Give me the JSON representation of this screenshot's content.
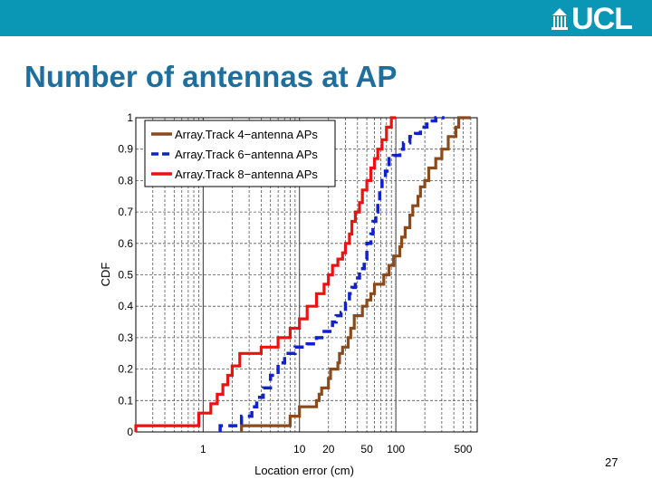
{
  "header": {
    "logo_text": "UCL",
    "bar_color": "#0a97b6"
  },
  "slide": {
    "title": "Number of antennas at AP",
    "page_number": "27"
  },
  "chart_data": {
    "type": "line",
    "xlabel": "Location error (cm)",
    "ylabel": "CDF",
    "xscale": "log",
    "xlim": [
      0.2,
      700
    ],
    "ylim": [
      0,
      1
    ],
    "x_ticks": [
      1,
      10,
      20,
      50,
      100,
      500
    ],
    "x_tick_labels": [
      "1",
      "10",
      "20",
      "50",
      "100",
      "500"
    ],
    "y_ticks": [
      0,
      0.1,
      0.2,
      0.3,
      0.4,
      0.5,
      0.6,
      0.7,
      0.8,
      0.9,
      1
    ],
    "y_tick_labels": [
      "0",
      "0.1",
      "0.2",
      "0.3",
      "0.4",
      "0.5",
      "0.6",
      "0.7",
      "0.8",
      "0.9",
      "1"
    ],
    "grid": true,
    "legend_position": "top-left",
    "series": [
      {
        "name": "Array.Track 4−antenna APs",
        "color": "#8b4a1c",
        "style": "solid",
        "x": [
          2.5,
          2.5,
          8,
          8,
          10,
          10,
          15,
          15,
          16,
          16,
          17,
          17,
          20,
          20,
          21,
          21,
          25,
          25,
          26,
          26,
          28,
          28,
          32,
          32,
          34,
          34,
          37,
          37,
          45,
          45,
          50,
          50,
          55,
          55,
          60,
          60,
          75,
          75,
          85,
          85,
          95,
          95,
          110,
          110,
          115,
          115,
          125,
          125,
          140,
          140,
          150,
          150,
          170,
          170,
          180,
          180,
          200,
          200,
          220,
          220,
          260,
          260,
          300,
          300,
          350,
          350,
          420,
          420,
          450,
          450,
          600
        ],
        "y": [
          0.0,
          0.02,
          0.02,
          0.05,
          0.05,
          0.08,
          0.08,
          0.1,
          0.1,
          0.12,
          0.12,
          0.14,
          0.14,
          0.17,
          0.17,
          0.2,
          0.2,
          0.22,
          0.22,
          0.25,
          0.25,
          0.27,
          0.27,
          0.3,
          0.3,
          0.33,
          0.33,
          0.37,
          0.37,
          0.4,
          0.4,
          0.42,
          0.42,
          0.44,
          0.44,
          0.47,
          0.47,
          0.5,
          0.5,
          0.53,
          0.53,
          0.56,
          0.56,
          0.59,
          0.59,
          0.62,
          0.62,
          0.65,
          0.65,
          0.69,
          0.69,
          0.72,
          0.72,
          0.75,
          0.75,
          0.78,
          0.78,
          0.8,
          0.8,
          0.84,
          0.84,
          0.87,
          0.87,
          0.9,
          0.9,
          0.94,
          0.94,
          0.97,
          0.97,
          1.0,
          1.0
        ]
      },
      {
        "name": "Array.Track 6−antenna APs",
        "color": "#1122cc",
        "style": "dashed",
        "x": [
          1.5,
          1.5,
          2.5,
          2.5,
          3.2,
          3.2,
          3.6,
          3.6,
          4.2,
          4.2,
          5,
          5,
          6,
          6,
          7,
          7,
          9,
          9,
          12,
          12,
          15,
          15,
          18,
          18,
          22,
          22,
          24,
          24,
          27,
          27,
          30,
          30,
          33,
          33,
          35,
          35,
          38,
          38,
          42,
          42,
          47,
          47,
          50,
          50,
          55,
          55,
          58,
          58,
          62,
          62,
          65,
          65,
          68,
          68,
          72,
          72,
          78,
          78,
          85,
          85,
          95,
          95,
          110,
          110,
          120,
          120,
          140,
          140,
          160,
          160,
          180,
          180,
          210,
          210,
          260,
          260,
          320
        ],
        "y": [
          0.0,
          0.02,
          0.02,
          0.05,
          0.05,
          0.08,
          0.08,
          0.11,
          0.11,
          0.14,
          0.14,
          0.18,
          0.18,
          0.22,
          0.22,
          0.25,
          0.25,
          0.27,
          0.27,
          0.28,
          0.28,
          0.3,
          0.3,
          0.32,
          0.32,
          0.35,
          0.35,
          0.37,
          0.37,
          0.38,
          0.38,
          0.41,
          0.41,
          0.44,
          0.44,
          0.46,
          0.46,
          0.49,
          0.49,
          0.52,
          0.52,
          0.55,
          0.55,
          0.6,
          0.6,
          0.63,
          0.63,
          0.67,
          0.67,
          0.7,
          0.7,
          0.73,
          0.73,
          0.77,
          0.77,
          0.8,
          0.8,
          0.83,
          0.83,
          0.87,
          0.87,
          0.88,
          0.88,
          0.9,
          0.9,
          0.92,
          0.92,
          0.94,
          0.94,
          0.95,
          0.95,
          0.97,
          0.97,
          0.99,
          0.99,
          1.0,
          1.0
        ]
      },
      {
        "name": "Array.Track 8−antenna APs",
        "color": "#ee1111",
        "style": "solid",
        "x": [
          0.2,
          0.2,
          0.9,
          0.9,
          1.2,
          1.2,
          1.4,
          1.4,
          1.6,
          1.6,
          1.8,
          1.8,
          2.0,
          2.0,
          2.4,
          2.4,
          4.0,
          4.0,
          6.0,
          6.0,
          8.0,
          8.0,
          10,
          10,
          12,
          12,
          15,
          15,
          18,
          18,
          20,
          20,
          22,
          22,
          25,
          25,
          28,
          28,
          30,
          30,
          33,
          33,
          35,
          35,
          38,
          38,
          42,
          42,
          45,
          45,
          50,
          50,
          55,
          55,
          60,
          60,
          65,
          65,
          72,
          72,
          80,
          80,
          90,
          90,
          100
        ],
        "y": [
          0.0,
          0.02,
          0.02,
          0.06,
          0.06,
          0.09,
          0.09,
          0.12,
          0.12,
          0.15,
          0.15,
          0.18,
          0.18,
          0.21,
          0.21,
          0.25,
          0.25,
          0.27,
          0.27,
          0.3,
          0.3,
          0.33,
          0.33,
          0.36,
          0.36,
          0.4,
          0.4,
          0.44,
          0.44,
          0.47,
          0.47,
          0.5,
          0.5,
          0.53,
          0.53,
          0.55,
          0.55,
          0.57,
          0.57,
          0.6,
          0.6,
          0.63,
          0.63,
          0.67,
          0.67,
          0.7,
          0.7,
          0.73,
          0.73,
          0.77,
          0.77,
          0.8,
          0.8,
          0.84,
          0.84,
          0.87,
          0.87,
          0.9,
          0.9,
          0.93,
          0.93,
          0.97,
          0.97,
          1.0,
          1.0
        ]
      }
    ]
  }
}
